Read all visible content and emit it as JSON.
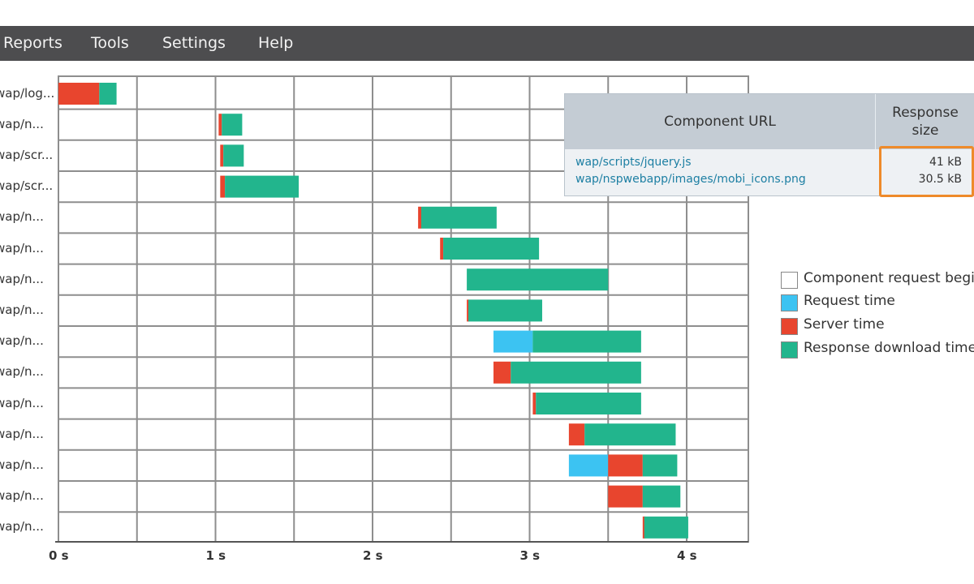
{
  "menu": {
    "items": [
      "Reports",
      "Tools",
      "Settings",
      "Help"
    ]
  },
  "colors": {
    "menubar": "#4d4d4f",
    "grid": "#8e8e8e",
    "request_begin": "#ffffff",
    "request_time": "#3cc3f2",
    "server_time": "#e8452e",
    "download_time": "#22b58d",
    "highlight": "#ee8a2a",
    "link": "#1d7fa3"
  },
  "chart_data": {
    "type": "waterfall",
    "x_ticks": [
      "0 s",
      "1 s",
      "2 s",
      "3 s",
      "4 s"
    ],
    "xlim": [
      0,
      4.4
    ],
    "grid": true,
    "series": [
      {
        "name": "Component request begin"
      },
      {
        "name": "Request time"
      },
      {
        "name": "Server time"
      },
      {
        "name": "Response download time"
      }
    ],
    "rows": [
      {
        "label": "wap/log...",
        "start": 0.0,
        "request": 0.0,
        "server": 0.26,
        "download": 0.11
      },
      {
        "label": "wap/n...",
        "start": 1.02,
        "request": 0.0,
        "server": 0.02,
        "download": 0.13
      },
      {
        "label": "wap/scr...",
        "start": 1.03,
        "request": 0.0,
        "server": 0.02,
        "download": 0.13
      },
      {
        "label": "wap/scr...",
        "start": 1.03,
        "request": 0.0,
        "server": 0.03,
        "download": 0.47
      },
      {
        "label": "wap/n...",
        "start": 2.29,
        "request": 0.0,
        "server": 0.02,
        "download": 0.48
      },
      {
        "label": "wap/n...",
        "start": 2.43,
        "request": 0.0,
        "server": 0.02,
        "download": 0.61
      },
      {
        "label": "wap/n...",
        "start": 2.6,
        "request": 0.0,
        "server": 0.0,
        "download": 0.9
      },
      {
        "label": "wap/n...",
        "start": 2.6,
        "request": 0.0,
        "server": 0.01,
        "download": 0.47
      },
      {
        "label": "wap/n...",
        "start": 2.77,
        "request": 0.25,
        "server": 0.0,
        "download": 0.69
      },
      {
        "label": "wap/n...",
        "start": 2.77,
        "request": 0.0,
        "server": 0.11,
        "download": 0.83
      },
      {
        "label": "wap/n...",
        "start": 3.02,
        "request": 0.0,
        "server": 0.02,
        "download": 0.67
      },
      {
        "label": "wap/n...",
        "start": 3.25,
        "request": 0.0,
        "server": 0.1,
        "download": 0.58
      },
      {
        "label": "wap/n...",
        "start": 3.25,
        "request": 0.25,
        "server": 0.22,
        "download": 0.22
      },
      {
        "label": "wap/n...",
        "start": 3.5,
        "request": 0.0,
        "server": 0.22,
        "download": 0.24
      },
      {
        "label": "wap/n...",
        "start": 3.72,
        "request": 0.0,
        "server": 0.01,
        "download": 0.28
      }
    ]
  },
  "details": {
    "col_url": "Component URL",
    "col_size": "Response size",
    "rows": [
      {
        "url": "wap/scripts/jquery.js",
        "size": "41 kB"
      },
      {
        "url": "wap/nspwebapp/images/mobi_icons.png",
        "size": "30.5 kB"
      }
    ]
  },
  "legend": {
    "items": [
      "Component request begin",
      "Request time",
      "Server time",
      "Response download time"
    ]
  }
}
